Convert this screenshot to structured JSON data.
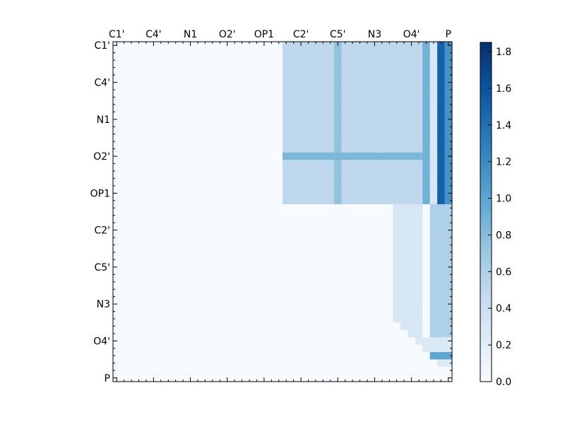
{
  "chart_data": {
    "type": "heatmap",
    "size": 46,
    "tick_step": 5,
    "x_tick_labels": [
      "C1'",
      "C4'",
      "N1",
      "O2'",
      "OP1",
      "C2'",
      "C5'",
      "N3",
      "O4'",
      "P"
    ],
    "y_tick_labels": [
      "C1'",
      "C4'",
      "N1",
      "O2'",
      "OP1",
      "C2'",
      "C5'",
      "N3",
      "O4'",
      "P"
    ],
    "colorbar": {
      "min": 0.0,
      "max": 1.85,
      "ticks": [
        "0.0",
        "0.2",
        "0.4",
        "0.6",
        "0.8",
        "1.0",
        "1.2",
        "1.4",
        "1.6",
        "1.8"
      ],
      "colormap": "Blues",
      "color_stops": [
        "#f7fbff",
        "#deebf7",
        "#c6dbef",
        "#9ecae1",
        "#6baed6",
        "#4292c6",
        "#2171b5",
        "#08519c",
        "#08306b"
      ]
    },
    "value_regions": [
      {
        "rows": [
          0,
          22
        ],
        "cols": [
          23,
          42
        ],
        "value": 0.5
      },
      {
        "rows": [
          0,
          22
        ],
        "cols": [
          42,
          43
        ],
        "value": 0.9
      },
      {
        "rows": [
          0,
          22
        ],
        "cols": [
          43,
          44
        ],
        "value": 0.3
      },
      {
        "rows": [
          0,
          22
        ],
        "cols": [
          44,
          45
        ],
        "value": 1.5
      },
      {
        "rows": [
          0,
          22
        ],
        "cols": [
          45,
          46
        ],
        "value": 1.15
      },
      {
        "rows": [
          0,
          22
        ],
        "cols": [
          30,
          31
        ],
        "value": 0.75
      },
      {
        "rows": [
          15,
          16
        ],
        "cols": [
          23,
          42
        ],
        "value": 0.85
      },
      {
        "rows": [
          22,
          40
        ],
        "cols": [
          38,
          42
        ],
        "value": 0.3
      },
      {
        "rows": [
          22,
          40
        ],
        "cols": [
          43,
          46
        ],
        "value": 0.6
      },
      {
        "rows": [
          40,
          44
        ],
        "cols": [
          40,
          46
        ],
        "value": 0.25
      },
      {
        "rows": [
          42,
          43
        ],
        "cols": [
          42,
          46
        ],
        "value": 1.0
      }
    ]
  }
}
